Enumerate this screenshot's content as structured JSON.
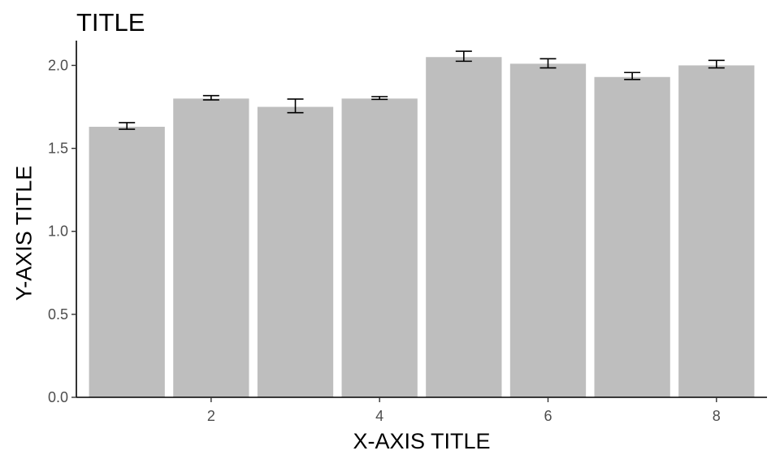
{
  "chart_data": {
    "type": "bar",
    "title": "TITLE",
    "xlabel": "X-AXIS TITLE",
    "ylabel": "Y-AXIS TITLE",
    "x": [
      1,
      2,
      3,
      4,
      5,
      6,
      7,
      8
    ],
    "values": [
      1.63,
      1.8,
      1.75,
      1.8,
      2.05,
      2.01,
      1.93,
      2.0
    ],
    "error_low": [
      1.615,
      1.792,
      1.715,
      1.795,
      2.025,
      1.985,
      1.915,
      1.985
    ],
    "error_high": [
      1.655,
      1.818,
      1.797,
      1.812,
      2.085,
      2.04,
      1.957,
      2.03
    ],
    "xlim": [
      0.4,
      8.6
    ],
    "ylim": [
      0,
      2.11
    ],
    "x_ticks": [
      2,
      4,
      6,
      8
    ],
    "y_ticks": [
      0.0,
      0.5,
      1.0,
      1.5,
      2.0
    ],
    "y_tick_labels": [
      "0.0",
      "0.5",
      "1.0",
      "1.5",
      "2.0"
    ],
    "bar_color": "#bebebe",
    "error_bar_color": "#000000",
    "grid": false,
    "legend": "none"
  }
}
